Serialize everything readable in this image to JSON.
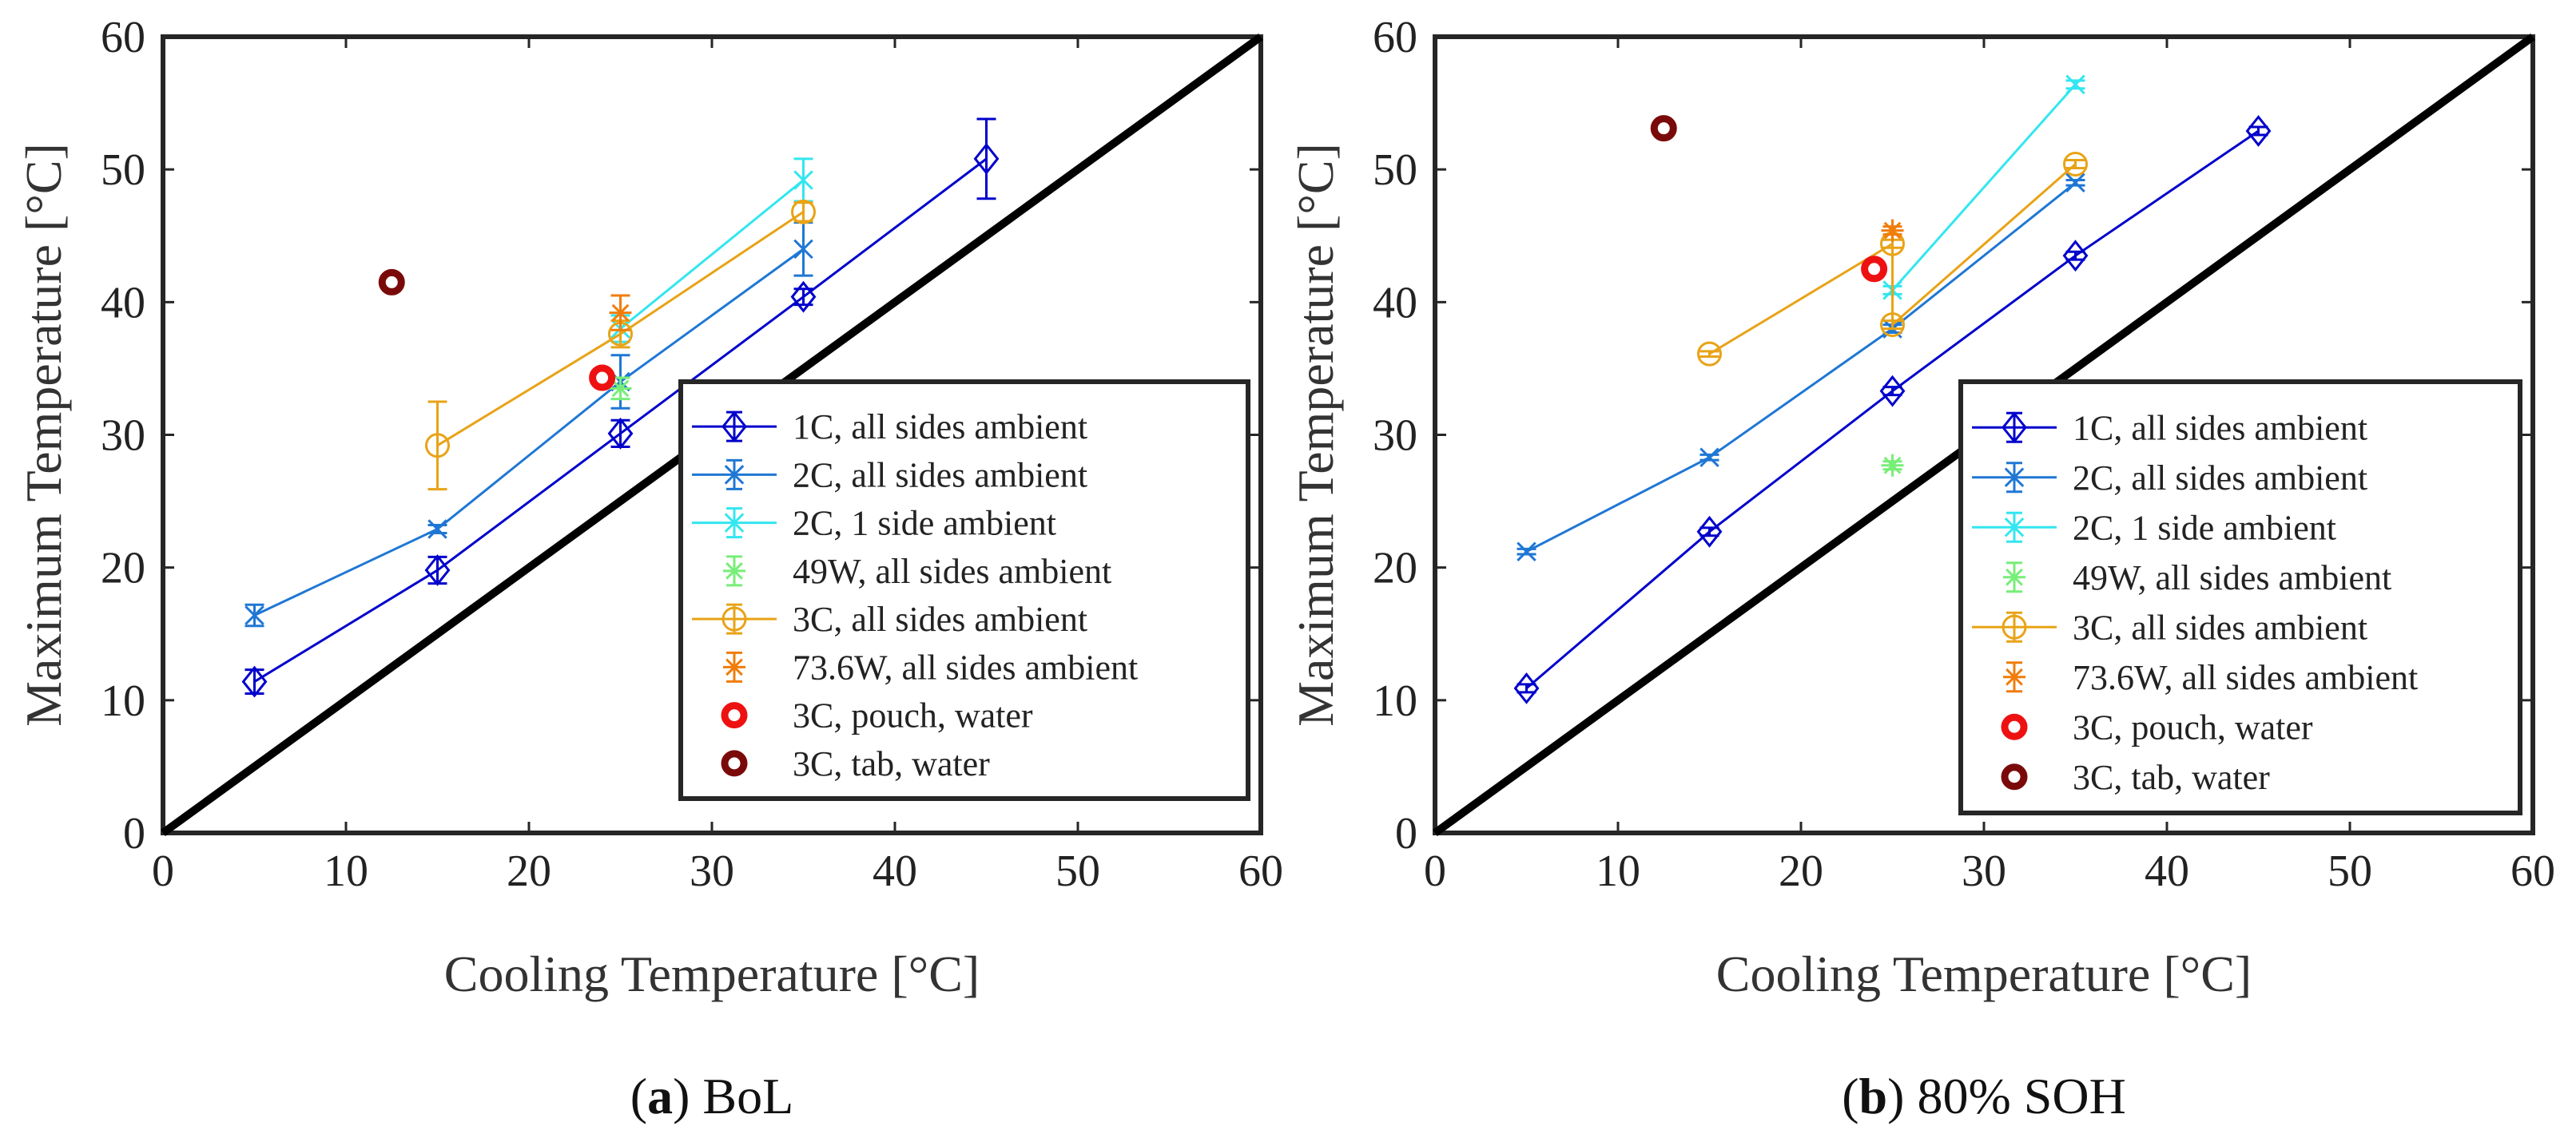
{
  "chart_data": [
    {
      "type": "line",
      "caption_letter": "a",
      "caption_text": "BoL",
      "xlabel": "Cooling Temperature [°C]",
      "ylabel": "Maximum Temperature [°C]",
      "xlim": [
        0,
        60
      ],
      "ylim": [
        0,
        60
      ],
      "xticks": [
        "0",
        "10",
        "20",
        "30",
        "40",
        "50",
        "60"
      ],
      "yticks": [
        "0",
        "10",
        "20",
        "30",
        "40",
        "50",
        "60"
      ],
      "grid": false,
      "legend_position": "right",
      "reference_line": {
        "x": [
          0,
          60
        ],
        "y": [
          0,
          60
        ],
        "color": "#000000"
      },
      "series": [
        {
          "name": "1C, all sides ambient",
          "color": "#0000cc",
          "marker": "diamond",
          "line": true,
          "x": [
            5,
            15,
            25,
            35,
            45
          ],
          "y": [
            11.4,
            19.8,
            30.1,
            40.4,
            50.8
          ],
          "err": [
            0.9,
            1.0,
            1.0,
            0.6,
            3.0
          ]
        },
        {
          "name": "2C, all sides ambient",
          "color": "#1f77d4",
          "marker": "x",
          "line": true,
          "x": [
            5,
            15,
            25,
            35
          ],
          "y": [
            16.4,
            22.9,
            34.0,
            44.0
          ],
          "err": [
            0.8,
            0.3,
            2.0,
            2.0
          ]
        },
        {
          "name": "2C, 1 side ambient",
          "color": "#33e6f0",
          "marker": "x",
          "line": true,
          "x": [
            25,
            35
          ],
          "y": [
            38.0,
            49.2
          ],
          "err": [
            1.0,
            1.6
          ]
        },
        {
          "name": "49W, all sides ambient",
          "color": "#77ee77",
          "marker": "star",
          "line": false,
          "x": [
            25
          ],
          "y": [
            33.5
          ],
          "err": [
            0.8
          ]
        },
        {
          "name": "3C, all sides ambient",
          "color": "#e8a317",
          "marker": "circle",
          "line": true,
          "x": [
            15,
            25,
            35
          ],
          "y": [
            29.2,
            37.6,
            46.8
          ],
          "err": [
            3.3,
            1.0,
            0.7
          ]
        },
        {
          "name": "73.6W, all sides ambient",
          "color": "#f07d0a",
          "marker": "star",
          "line": false,
          "x": [
            25
          ],
          "y": [
            39.2
          ],
          "err": [
            1.3
          ]
        },
        {
          "name": "3C, pouch, water",
          "color": "#ee1111",
          "marker": "circle-bold",
          "line": false,
          "x": [
            24
          ],
          "y": [
            34.3
          ],
          "err": []
        },
        {
          "name": "3C, tab, water",
          "color": "#7a0a0a",
          "marker": "circle-bold",
          "line": false,
          "x": [
            12.5
          ],
          "y": [
            41.5
          ],
          "err": []
        }
      ]
    },
    {
      "type": "line",
      "caption_letter": "b",
      "caption_text": "80% SOH",
      "xlabel": "Cooling Temperature [°C]",
      "ylabel": "Maximum Temperature [°C]",
      "xlim": [
        0,
        60
      ],
      "ylim": [
        0,
        60
      ],
      "xticks": [
        "0",
        "10",
        "20",
        "30",
        "40",
        "50",
        "60"
      ],
      "yticks": [
        "0",
        "10",
        "20",
        "30",
        "40",
        "50",
        "60"
      ],
      "grid": false,
      "legend_position": "right",
      "reference_line": {
        "x": [
          0,
          60
        ],
        "y": [
          0,
          60
        ],
        "color": "#000000"
      },
      "series": [
        {
          "name": "1C, all sides ambient",
          "color": "#0000cc",
          "marker": "diamond",
          "line": true,
          "x": [
            5,
            15,
            25,
            35,
            45
          ],
          "y": [
            10.9,
            22.7,
            33.3,
            43.5,
            52.9
          ],
          "err": [
            0.3,
            0.3,
            0.3,
            0.3,
            0.3
          ]
        },
        {
          "name": "2C, all sides ambient",
          "color": "#1f77d4",
          "marker": "x",
          "line": true,
          "x": [
            5,
            15,
            25,
            35
          ],
          "y": [
            21.2,
            28.3,
            38.0,
            49.0
          ],
          "err": [
            0.2,
            0.2,
            0.3,
            0.2
          ]
        },
        {
          "name": "2C, 1 side ambient",
          "color": "#33e6f0",
          "marker": "x",
          "line": true,
          "x": [
            25,
            35
          ],
          "y": [
            40.9,
            56.4
          ],
          "err": [
            0.3,
            0.3
          ]
        },
        {
          "name": "49W, all sides ambient",
          "color": "#77ee77",
          "marker": "star",
          "line": false,
          "x": [
            25
          ],
          "y": [
            27.7
          ],
          "err": [
            0.3
          ]
        },
        {
          "name": "3C, all sides ambient",
          "color": "#e8a317",
          "marker": "circle",
          "line": true,
          "x": [
            15,
            25,
            25,
            35
          ],
          "y": [
            36.1,
            44.4,
            38.3,
            50.4
          ],
          "err": [
            0.2,
            0.3,
            0.3,
            0.3
          ]
        },
        {
          "name": "73.6W, all sides ambient",
          "color": "#f07d0a",
          "marker": "star",
          "line": false,
          "x": [
            25
          ],
          "y": [
            45.4
          ],
          "err": [
            0.3
          ]
        },
        {
          "name": "3C, pouch, water",
          "color": "#ee1111",
          "marker": "circle-bold",
          "line": false,
          "x": [
            24
          ],
          "y": [
            42.5
          ],
          "err": []
        },
        {
          "name": "3C, tab, water",
          "color": "#7a0a0a",
          "marker": "circle-bold",
          "line": false,
          "x": [
            12.5
          ],
          "y": [
            53.1
          ],
          "err": []
        }
      ]
    }
  ]
}
